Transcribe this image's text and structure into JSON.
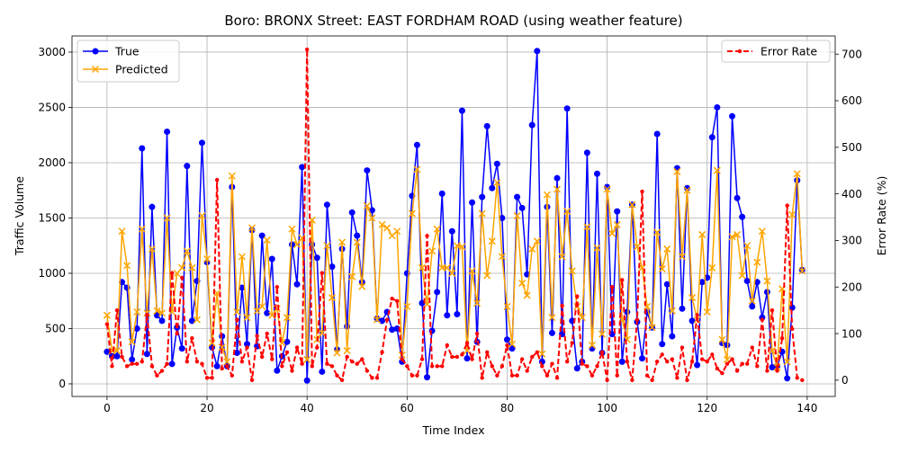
{
  "chart_data": {
    "type": "line",
    "title": "Boro: BRONX Street: EAST FORDHAM ROAD (using weather feature)",
    "xlabel": "Time Index",
    "ylabel": "Traffic Volume",
    "y2label": "Error Rate (%)",
    "xlim": [
      -7,
      145.6
    ],
    "ylim": [
      -114,
      3146
    ],
    "y2lim": [
      -35,
      739
    ],
    "xticks": [
      0,
      20,
      40,
      60,
      80,
      100,
      120,
      140
    ],
    "yticks": [
      0,
      500,
      1000,
      1500,
      2000,
      2500,
      3000
    ],
    "y2ticks": [
      0,
      100,
      200,
      300,
      400,
      500,
      600,
      700
    ],
    "grid": true,
    "legend_left": "top-left",
    "legend_right": "top-right",
    "x_start": 0,
    "series": [
      {
        "name": "True",
        "axis": "left",
        "color": "#0000ff",
        "marker": "circle",
        "linestyle": "solid",
        "values": [
          290,
          250,
          250,
          920,
          870,
          220,
          500,
          2130,
          270,
          1600,
          620,
          570,
          2280,
          180,
          510,
          320,
          1970,
          570,
          930,
          2180,
          1100,
          330,
          160,
          430,
          160,
          1780,
          280,
          870,
          360,
          1390,
          340,
          1340,
          640,
          1130,
          120,
          250,
          380,
          1260,
          900,
          1960,
          30,
          1260,
          1140,
          110,
          1620,
          1060,
          310,
          1220,
          520,
          1550,
          1340,
          920,
          1930,
          1570,
          590,
          570,
          650,
          490,
          500,
          200,
          1000,
          1700,
          2160,
          730,
          60,
          480,
          830,
          1720,
          620,
          1380,
          630,
          2470,
          230,
          1640,
          380,
          1690,
          2330,
          1770,
          1990,
          1500,
          400,
          320,
          1690,
          1590,
          990,
          2340,
          3010,
          200,
          1600,
          460,
          1860,
          450,
          2490,
          570,
          140,
          200,
          2090,
          320,
          1900,
          280,
          1780,
          450,
          1560,
          200,
          650,
          1620,
          560,
          230,
          650,
          510,
          2260,
          360,
          900,
          430,
          1950,
          680,
          1770,
          570,
          170,
          920,
          960,
          2230,
          2500,
          370,
          350,
          2420,
          1680,
          1510,
          930,
          700,
          920,
          600,
          830,
          150,
          160,
          290,
          50,
          690,
          1840,
          1030
        ]
      },
      {
        "name": "Predicted",
        "axis": "left",
        "color": "#ffa500",
        "marker": "x",
        "linestyle": "solid",
        "values": [
          620,
          300,
          300,
          1380,
          1070,
          380,
          650,
          1400,
          640,
          1220,
          660,
          640,
          1500,
          650,
          1000,
          1050,
          1200,
          1050,
          580,
          1520,
          1130,
          370,
          820,
          330,
          200,
          1880,
          650,
          1150,
          600,
          1410,
          660,
          700,
          1300,
          620,
          680,
          370,
          600,
          1400,
          1260,
          1320,
          220,
          1480,
          400,
          460,
          1250,
          780,
          280,
          1280,
          300,
          970,
          1280,
          880,
          1610,
          1500,
          580,
          1440,
          1410,
          1340,
          1380,
          260,
          700,
          1540,
          1940,
          1050,
          720,
          1200,
          1400,
          1050,
          1050,
          1000,
          1250,
          1240,
          300,
          1020,
          730,
          1540,
          980,
          1290,
          1820,
          1150,
          700,
          360,
          1520,
          910,
          800,
          1220,
          1290,
          270,
          1710,
          600,
          1760,
          1150,
          1560,
          1020,
          700,
          600,
          1420,
          350,
          1230,
          450,
          1760,
          1360,
          1440,
          580,
          400,
          1620,
          1240,
          1050,
          700,
          510,
          1370,
          1040,
          1220,
          660,
          1920,
          1150,
          1750,
          780,
          580,
          1350,
          650,
          1050,
          1930,
          400,
          220,
          1330,
          1350,
          980,
          1250,
          750,
          1100,
          1380,
          930,
          300,
          150,
          860,
          200,
          1530,
          1900,
          1020
        ]
      },
      {
        "name": "Error Rate",
        "axis": "right",
        "color": "#ff0000",
        "marker": "dot",
        "linestyle": "dashed",
        "values": [
          120,
          30,
          150,
          50,
          30,
          35,
          35,
          40,
          140,
          30,
          10,
          20,
          35,
          230,
          100,
          220,
          40,
          90,
          40,
          35,
          5,
          5,
          430,
          25,
          30,
          10,
          130,
          40,
          70,
          0,
          95,
          50,
          100,
          45,
          200,
          30,
          60,
          20,
          70,
          35,
          710,
          30,
          70,
          230,
          35,
          30,
          10,
          0,
          50,
          40,
          35,
          45,
          20,
          5,
          5,
          60,
          130,
          175,
          170,
          45,
          30,
          10,
          10,
          45,
          310,
          30,
          30,
          30,
          75,
          50,
          50,
          55,
          80,
          45,
          100,
          5,
          60,
          30,
          10,
          30,
          75,
          10,
          10,
          45,
          20,
          50,
          60,
          30,
          10,
          35,
          5,
          160,
          40,
          80,
          180,
          35,
          30,
          10,
          30,
          60,
          0,
          200,
          10,
          215,
          40,
          0,
          130,
          405,
          10,
          0,
          40,
          55,
          40,
          45,
          5,
          70,
          0,
          40,
          140,
          45,
          40,
          55,
          25,
          15,
          35,
          45,
          20,
          35,
          35,
          70,
          30,
          130,
          20,
          150,
          20,
          90,
          375,
          110,
          5,
          0
        ]
      }
    ]
  }
}
